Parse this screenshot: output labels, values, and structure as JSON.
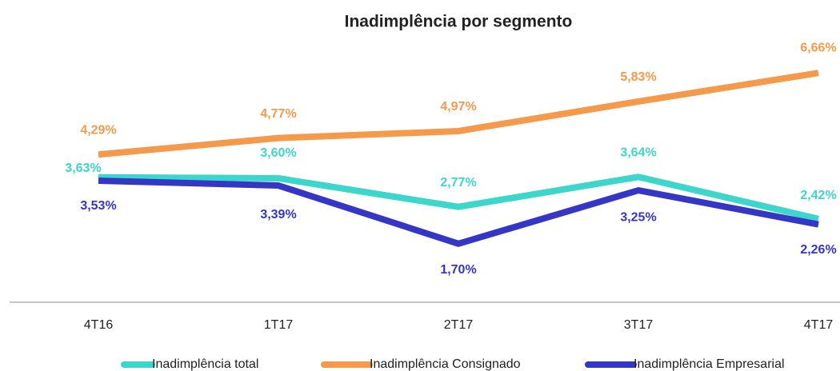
{
  "chart_data": {
    "type": "line",
    "title": "Inadimplência por segmento",
    "categories": [
      "4T16",
      "1T17",
      "2T17",
      "3T17",
      "4T17"
    ],
    "ylim": [
      0,
      8
    ],
    "series": [
      {
        "name": "Inadimplência total",
        "color": "#3dd6cc",
        "values": [
          3.63,
          3.6,
          2.77,
          3.64,
          2.42
        ],
        "value_labels": [
          "3,63%",
          "3,60%",
          "2,77%",
          "3,64%",
          "2,42%"
        ]
      },
      {
        "name": "Inadimplência Consignado",
        "color": "#f59a4a",
        "values": [
          4.29,
          4.77,
          4.97,
          5.83,
          6.66
        ],
        "value_labels": [
          "4,29%",
          "4,77%",
          "4,97%",
          "5,83%",
          "6,66%"
        ]
      },
      {
        "name": "Inadimplência Empresarial",
        "color": "#3535c6",
        "values": [
          3.53,
          3.39,
          1.7,
          3.25,
          2.26
        ],
        "value_labels": [
          "3,53%",
          "3,39%",
          "1,70%",
          "3,25%",
          "2,26%"
        ]
      }
    ]
  }
}
